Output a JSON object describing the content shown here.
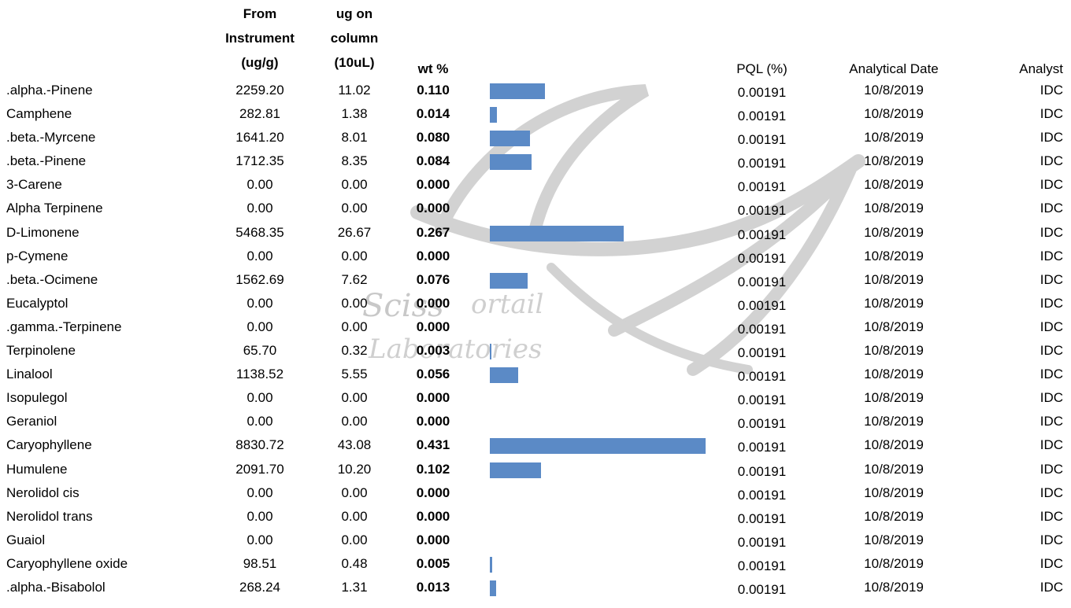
{
  "headers": {
    "from_instrument": "From\nInstrument\n(ug/g)",
    "ug_on_column": "ug on\ncolumn\n(10uL)",
    "wt": "wt %",
    "pql": "PQL (%)",
    "date": "Analytical Date",
    "analyst": "Analyst"
  },
  "watermark": {
    "line1": "Sciss",
    "line1b": "ortail",
    "line2": "Laboratories",
    "color": "#c8c8c8"
  },
  "bar_color": "#5b8ac6",
  "bar_scale_max": 0.431,
  "rows": [
    {
      "name": ".alpha.-Pinene",
      "instr": "2259.20",
      "ug": "11.02",
      "wt": "0.110",
      "wt_value": 0.11,
      "pql": "0.00191",
      "date": "10/8/2019",
      "analyst": "IDC"
    },
    {
      "name": "Camphene",
      "instr": "282.81",
      "ug": "1.38",
      "wt": "0.014",
      "wt_value": 0.014,
      "pql": "0.00191",
      "date": "10/8/2019",
      "analyst": "IDC"
    },
    {
      "name": ".beta.-Myrcene",
      "instr": "1641.20",
      "ug": "8.01",
      "wt": "0.080",
      "wt_value": 0.08,
      "pql": "0.00191",
      "date": "10/8/2019",
      "analyst": "IDC"
    },
    {
      "name": ".beta.-Pinene",
      "instr": "1712.35",
      "ug": "8.35",
      "wt": "0.084",
      "wt_value": 0.084,
      "pql": "0.00191",
      "date": "10/8/2019",
      "analyst": "IDC"
    },
    {
      "name": "3-Carene",
      "instr": "0.00",
      "ug": "0.00",
      "wt": "0.000",
      "wt_value": 0.0,
      "pql": "0.00191",
      "date": "10/8/2019",
      "analyst": "IDC"
    },
    {
      "name": "Alpha Terpinene",
      "instr": "0.00",
      "ug": "0.00",
      "wt": "0.000",
      "wt_value": 0.0,
      "pql": "0.00191",
      "date": "10/8/2019",
      "analyst": "IDC"
    },
    {
      "name": "D-Limonene",
      "instr": "5468.35",
      "ug": "26.67",
      "wt": "0.267",
      "wt_value": 0.267,
      "pql": "0.00191",
      "date": "10/8/2019",
      "analyst": "IDC"
    },
    {
      "name": "p-Cymene",
      "instr": "0.00",
      "ug": "0.00",
      "wt": "0.000",
      "wt_value": 0.0,
      "pql": "0.00191",
      "date": "10/8/2019",
      "analyst": "IDC"
    },
    {
      "name": ".beta.-Ocimene",
      "instr": "1562.69",
      "ug": "7.62",
      "wt": "0.076",
      "wt_value": 0.076,
      "pql": "0.00191",
      "date": "10/8/2019",
      "analyst": "IDC"
    },
    {
      "name": "Eucalyptol",
      "instr": "0.00",
      "ug": "0.00",
      "wt": "0.000",
      "wt_value": 0.0,
      "pql": "0.00191",
      "date": "10/8/2019",
      "analyst": "IDC"
    },
    {
      "name": ".gamma.-Terpinene",
      "instr": "0.00",
      "ug": "0.00",
      "wt": "0.000",
      "wt_value": 0.0,
      "pql": "0.00191",
      "date": "10/8/2019",
      "analyst": "IDC"
    },
    {
      "name": "Terpinolene",
      "instr": "65.70",
      "ug": "0.32",
      "wt": "0.003",
      "wt_value": 0.003,
      "pql": "0.00191",
      "date": "10/8/2019",
      "analyst": "IDC"
    },
    {
      "name": "Linalool",
      "instr": "1138.52",
      "ug": "5.55",
      "wt": "0.056",
      "wt_value": 0.056,
      "pql": "0.00191",
      "date": "10/8/2019",
      "analyst": "IDC"
    },
    {
      "name": "Isopulegol",
      "instr": "0.00",
      "ug": "0.00",
      "wt": "0.000",
      "wt_value": 0.0,
      "pql": "0.00191",
      "date": "10/8/2019",
      "analyst": "IDC"
    },
    {
      "name": "Geraniol",
      "instr": "0.00",
      "ug": "0.00",
      "wt": "0.000",
      "wt_value": 0.0,
      "pql": "0.00191",
      "date": "10/8/2019",
      "analyst": "IDC"
    },
    {
      "name": "Caryophyllene",
      "instr": "8830.72",
      "ug": "43.08",
      "wt": "0.431",
      "wt_value": 0.431,
      "pql": "0.00191",
      "date": "10/8/2019",
      "analyst": "IDC"
    },
    {
      "name": "Humulene",
      "instr": "2091.70",
      "ug": "10.20",
      "wt": "0.102",
      "wt_value": 0.102,
      "pql": "0.00191",
      "date": "10/8/2019",
      "analyst": "IDC"
    },
    {
      "name": "Nerolidol cis",
      "instr": "0.00",
      "ug": "0.00",
      "wt": "0.000",
      "wt_value": 0.0,
      "pql": "0.00191",
      "date": "10/8/2019",
      "analyst": "IDC"
    },
    {
      "name": "Nerolidol trans",
      "instr": "0.00",
      "ug": "0.00",
      "wt": "0.000",
      "wt_value": 0.0,
      "pql": "0.00191",
      "date": "10/8/2019",
      "analyst": "IDC"
    },
    {
      "name": "Guaiol",
      "instr": "0.00",
      "ug": "0.00",
      "wt": "0.000",
      "wt_value": 0.0,
      "pql": "0.00191",
      "date": "10/8/2019",
      "analyst": "IDC"
    },
    {
      "name": "Caryophyllene oxide",
      "instr": "98.51",
      "ug": "0.48",
      "wt": "0.005",
      "wt_value": 0.005,
      "pql": "0.00191",
      "date": "10/8/2019",
      "analyst": "IDC"
    },
    {
      "name": ".alpha.-Bisabolol",
      "instr": "268.24",
      "ug": "1.31",
      "wt": "0.013",
      "wt_value": 0.013,
      "pql": "0.00191",
      "date": "10/8/2019",
      "analyst": "IDC"
    }
  ]
}
